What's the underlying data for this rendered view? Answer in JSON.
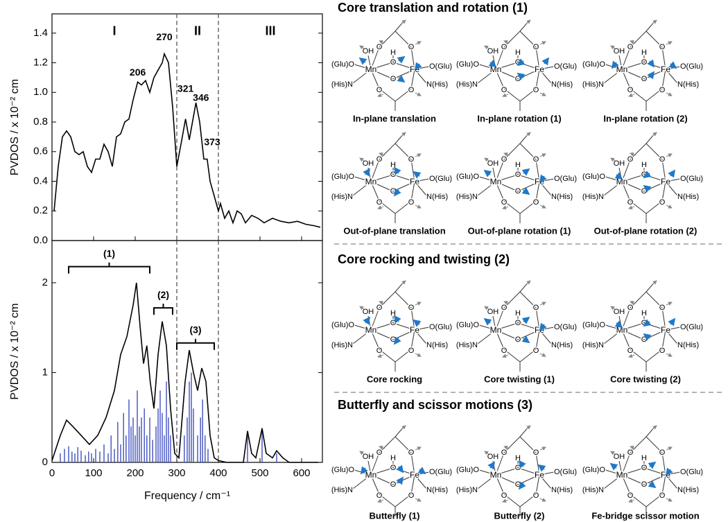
{
  "chart_data": [
    {
      "type": "line",
      "ylabel": "PVDOS / x 10⁻² cm",
      "color": "#000000",
      "x": [
        5,
        15,
        25,
        35,
        45,
        55,
        65,
        75,
        85,
        95,
        105,
        115,
        125,
        135,
        145,
        155,
        165,
        175,
        185,
        195,
        206,
        215,
        225,
        235,
        245,
        255,
        265,
        270,
        280,
        290,
        300,
        310,
        321,
        330,
        346,
        355,
        365,
        373,
        380,
        390,
        400,
        405,
        415,
        425,
        435,
        445,
        455,
        465,
        480,
        495,
        510,
        530,
        550,
        570,
        590,
        610,
        630,
        645
      ],
      "values": [
        0.2,
        0.5,
        0.7,
        0.74,
        0.7,
        0.6,
        0.58,
        0.6,
        0.5,
        0.46,
        0.55,
        0.55,
        0.65,
        0.6,
        0.5,
        0.7,
        0.72,
        0.8,
        0.82,
        0.95,
        1.07,
        1.05,
        1.08,
        1.0,
        1.1,
        1.15,
        1.2,
        1.26,
        1.2,
        0.9,
        0.5,
        0.65,
        0.82,
        0.68,
        0.93,
        0.8,
        0.55,
        0.55,
        0.4,
        0.3,
        0.2,
        0.25,
        0.15,
        0.2,
        0.12,
        0.2,
        0.18,
        0.12,
        0.17,
        0.15,
        0.12,
        0.15,
        0.13,
        0.12,
        0.13,
        0.11,
        0.1,
        0.09
      ],
      "xlim": [
        0,
        650
      ],
      "xticks": [
        0,
        100,
        200,
        300,
        400,
        500,
        600
      ],
      "ylim": [
        0,
        1.53
      ],
      "yticks": [
        {
          "value": 0,
          "label": "0.0"
        },
        0.2,
        0.4,
        0.6,
        0.8,
        {
          "value": 1,
          "label": "1.0"
        },
        1.2,
        1.4
      ],
      "vlines": [
        300,
        400
      ],
      "annotations": [
        {
          "text": "206",
          "x": 206,
          "y": 1.13
        },
        {
          "text": "270",
          "x": 270,
          "y": 1.37
        },
        {
          "text": "321",
          "x": 321,
          "y": 1.02
        },
        {
          "text": "346",
          "x": 358,
          "y": 0.96
        },
        {
          "text": "373",
          "x": 385,
          "y": 0.66
        }
      ],
      "regions": [
        {
          "text": "I",
          "x": 150,
          "y": 1.41
        },
        {
          "text": "II",
          "x": 350,
          "y": 1.41
        },
        {
          "text": "III",
          "x": 525,
          "y": 1.41
        }
      ]
    },
    {
      "type": "line",
      "xlabel": "Frequency / cm⁻¹",
      "ylabel": "PVDOS / x 10⁻² cm",
      "color": "#000000",
      "x": [
        0,
        20,
        35,
        50,
        70,
        90,
        110,
        130,
        150,
        165,
        180,
        195,
        203,
        212,
        220,
        228,
        236,
        245,
        255,
        265,
        275,
        285,
        295,
        305,
        320,
        330,
        340,
        350,
        360,
        370,
        380,
        390,
        400,
        420,
        460,
        470,
        480,
        490,
        505,
        515,
        530,
        540,
        555,
        570,
        600,
        640
      ],
      "values": [
        0.02,
        0.3,
        0.47,
        0.4,
        0.3,
        0.2,
        0.3,
        0.5,
        0.8,
        1.2,
        1.4,
        1.75,
        2.0,
        1.5,
        1.1,
        1.3,
        0.9,
        0.6,
        1.2,
        1.57,
        1.3,
        0.6,
        0.1,
        0.05,
        0.9,
        1.25,
        1.0,
        0.8,
        1.05,
        0.9,
        0.3,
        0.05,
        0.02,
        0,
        0,
        0.35,
        0.1,
        0.05,
        0.38,
        0.1,
        0.05,
        0.13,
        0.05,
        0,
        0,
        0
      ],
      "sticks": {
        "color": "#4a5bc4",
        "x": [
          20,
          30,
          40,
          48,
          55,
          62,
          70,
          80,
          88,
          95,
          105,
          115,
          125,
          135,
          142,
          150,
          158,
          165,
          172,
          178,
          185,
          190,
          195,
          200,
          205,
          210,
          215,
          222,
          228,
          235,
          242,
          250,
          255,
          260,
          265,
          270,
          275,
          280,
          285,
          318,
          325,
          330,
          335,
          340,
          350,
          357,
          362,
          368,
          375,
          470,
          505,
          540
        ],
        "values": [
          0.1,
          0.15,
          0.18,
          0.12,
          0.1,
          0.17,
          0.13,
          0.08,
          0.12,
          0.1,
          0.15,
          0.12,
          0.2,
          0.1,
          0.3,
          0.15,
          0.45,
          0.2,
          0.55,
          0.3,
          0.7,
          0.4,
          0.5,
          0.3,
          0.8,
          0.4,
          0.5,
          0.6,
          0.3,
          0.5,
          0.25,
          0.4,
          0.6,
          0.8,
          0.55,
          0.3,
          0.9,
          0.5,
          0.3,
          0.3,
          0.5,
          0.9,
          1.0,
          0.6,
          0.3,
          0.5,
          0.7,
          0.3,
          0.15,
          0.3,
          0.35,
          0.1
        ]
      },
      "xlim": [
        0,
        650
      ],
      "xticks": [
        0,
        100,
        200,
        300,
        400,
        500,
        600
      ],
      "ylim": [
        0,
        2.47
      ],
      "yticks": [
        0,
        1,
        2
      ],
      "vlines": [
        300,
        400
      ],
      "brackets": [
        {
          "label": "(1)",
          "range": [
            40,
            235
          ],
          "y": 2.18
        },
        {
          "label": "(2)",
          "range": [
            245,
            290
          ],
          "y": 1.72
        },
        {
          "label": "(3)",
          "range": [
            300,
            390
          ],
          "y": 1.33
        }
      ]
    }
  ],
  "diagrams": {
    "atoms": {
      "oh": "OH",
      "h": "H",
      "o": "O",
      "mn": "Mn",
      "fe": "Fe",
      "glu_left": "(Glu)O",
      "glu_right": "O(Glu)",
      "his_left": "(His)N",
      "his_right": "N(His)"
    },
    "sections": [
      {
        "title": "Core translation and rotation (1)",
        "captions": [
          "In-plane translation",
          "In-plane rotation (1)",
          "In-plane rotation (2)",
          "Out-of-plane translation",
          "Out-of-plane rotation (1)",
          "Out-of-plane rotation (2)"
        ]
      },
      {
        "title": "Core rocking and twisting (2)",
        "captions": [
          "Core rocking",
          "Core twisting (1)",
          "Core twisting (2)"
        ]
      },
      {
        "title": "Butterfly and scissor motions (3)",
        "captions": [
          "Butterfly (1)",
          "Butterfly (2)",
          "Fe-bridge scissor motion"
        ]
      }
    ]
  }
}
